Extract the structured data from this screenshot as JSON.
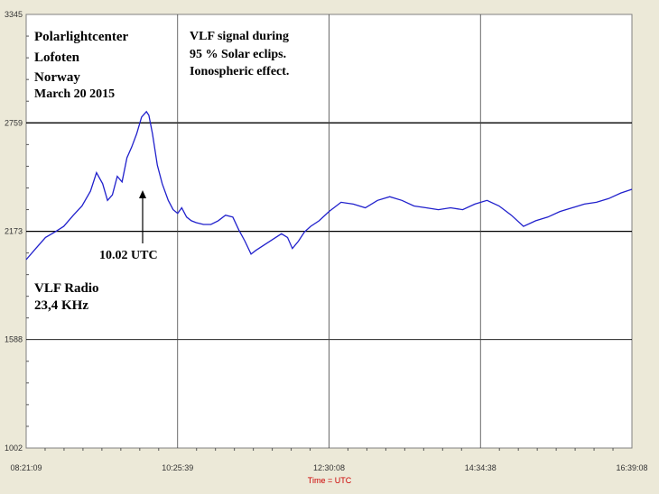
{
  "chart_data": {
    "type": "line",
    "title": "",
    "xlabel": "Time = UTC",
    "ylabel": "",
    "ylim": [
      1002,
      3345
    ],
    "y_ticks": [
      1002,
      1588,
      2173,
      2759,
      3345
    ],
    "y_tick_labels": [
      "1002",
      "1588",
      "2173",
      "2759",
      "3345"
    ],
    "x_ticks": [
      "08:21:09",
      "10:25:39",
      "12:30:08",
      "14:34:38",
      "16:39:08"
    ],
    "grid": true,
    "colors": {
      "series": "#2020cc",
      "grid": "#000000",
      "axis_title": "#cc0000",
      "background": "#ffffff"
    },
    "series": [
      {
        "name": "",
        "x": [
          "08:21:09",
          "08:29:00",
          "08:37:00",
          "08:45:00",
          "08:52:00",
          "09:00:00",
          "09:07:00",
          "09:14:00",
          "09:19:00",
          "09:24:00",
          "09:28:00",
          "09:32:00",
          "09:36:00",
          "09:40:00",
          "09:44:00",
          "09:48:00",
          "09:52:00",
          "09:56:00",
          "10:00:00",
          "10:02:00",
          "10:05:00",
          "10:09:00",
          "10:13:00",
          "10:18:00",
          "10:22:00",
          "10:25:39",
          "10:29:00",
          "10:33:00",
          "10:37:00",
          "10:41:00",
          "10:47:00",
          "10:53:00",
          "10:59:00",
          "11:05:00",
          "11:11:00",
          "11:16:00",
          "11:21:00",
          "11:26:00",
          "11:30:00",
          "11:37:00",
          "11:44:00",
          "11:51:00",
          "11:56:00",
          "12:00:00",
          "12:05:00",
          "12:10:00",
          "12:15:00",
          "12:22:00",
          "12:30:08",
          "12:40:00",
          "12:50:00",
          "13:00:00",
          "13:10:00",
          "13:20:00",
          "13:30:00",
          "13:40:00",
          "13:50:00",
          "14:00:00",
          "14:10:00",
          "14:20:00",
          "14:30:00",
          "14:40:00",
          "14:50:00",
          "15:00:00",
          "15:10:00",
          "15:20:00",
          "15:30:00",
          "15:40:00",
          "15:50:00",
          "16:00:00",
          "16:10:00",
          "16:20:00",
          "16:30:00",
          "16:39:08"
        ],
        "values": [
          2020,
          2080,
          2140,
          2170,
          2200,
          2260,
          2310,
          2390,
          2490,
          2430,
          2340,
          2370,
          2470,
          2440,
          2570,
          2630,
          2700,
          2790,
          2820,
          2800,
          2700,
          2530,
          2430,
          2340,
          2290,
          2270,
          2300,
          2250,
          2230,
          2220,
          2210,
          2210,
          2230,
          2260,
          2250,
          2180,
          2120,
          2050,
          2070,
          2100,
          2130,
          2160,
          2140,
          2080,
          2120,
          2170,
          2200,
          2230,
          2280,
          2330,
          2320,
          2300,
          2340,
          2360,
          2340,
          2310,
          2300,
          2290,
          2300,
          2290,
          2320,
          2340,
          2310,
          2260,
          2200,
          2230,
          2250,
          2280,
          2300,
          2320,
          2330,
          2350,
          2380,
          2400
        ]
      }
    ]
  },
  "annotations": {
    "station_line1": "Polarlightcenter",
    "station_line2": "Lofoten",
    "station_line3": "Norway",
    "date": "March 20 2015",
    "signal_line1": "VLF signal during",
    "signal_line2": "95 % Solar eclips.",
    "signal_line3": "Ionospheric effect.",
    "peak_label": "10.02 UTC",
    "radio_line1": "VLF Radio",
    "radio_line2": "23,4 KHz"
  }
}
